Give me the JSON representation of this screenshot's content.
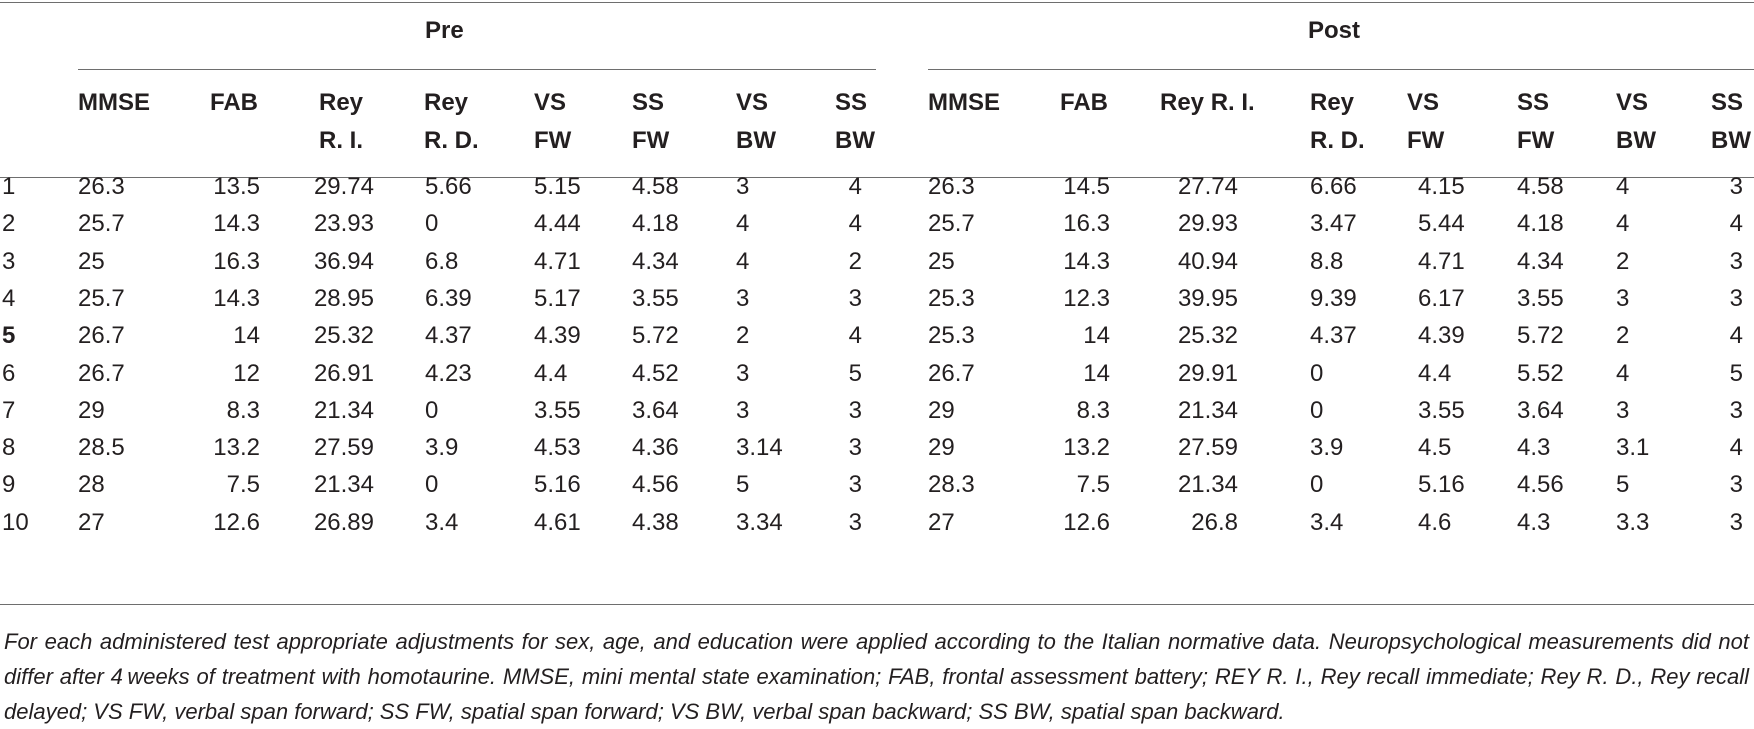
{
  "groups": {
    "pre": "Pre",
    "post": "Post"
  },
  "headers": {
    "pre": [
      [
        "MMSE"
      ],
      [
        "FAB"
      ],
      [
        "Rey",
        "R. I."
      ],
      [
        "Rey",
        "R. D."
      ],
      [
        "VS",
        "FW"
      ],
      [
        "SS",
        "FW"
      ],
      [
        "VS",
        "BW"
      ],
      [
        "SS",
        "BW"
      ]
    ],
    "post": [
      [
        "MMSE"
      ],
      [
        "FAB"
      ],
      [
        "Rey R. I."
      ],
      [
        "Rey",
        "R. D."
      ],
      [
        "VS",
        "FW"
      ],
      [
        "SS",
        "FW"
      ],
      [
        "VS",
        "BW"
      ],
      [
        "SS",
        "BW"
      ]
    ]
  },
  "rows": [
    {
      "id": "1",
      "bold": false,
      "pre": [
        "26.3",
        "13.5",
        "29.74",
        "5.66",
        "5.15",
        "4.58",
        "3",
        "4"
      ],
      "post": [
        "26.3",
        "14.5",
        "27.74",
        "6.66",
        "4.15",
        "4.58",
        "4",
        "3"
      ]
    },
    {
      "id": "2",
      "bold": false,
      "pre": [
        "25.7",
        "14.3",
        "23.93",
        "0",
        "4.44",
        "4.18",
        "4",
        "4"
      ],
      "post": [
        "25.7",
        "16.3",
        "29.93",
        "3.47",
        "5.44",
        "4.18",
        "4",
        "4"
      ]
    },
    {
      "id": "3",
      "bold": false,
      "pre": [
        "25",
        "16.3",
        "36.94",
        "6.8",
        "4.71",
        "4.34",
        "4",
        "2"
      ],
      "post": [
        "25",
        "14.3",
        "40.94",
        "8.8",
        "4.71",
        "4.34",
        "2",
        "3"
      ]
    },
    {
      "id": "4",
      "bold": false,
      "pre": [
        "25.7",
        "14.3",
        "28.95",
        "6.39",
        "5.17",
        "3.55",
        "3",
        "3"
      ],
      "post": [
        "25.3",
        "12.3",
        "39.95",
        "9.39",
        "6.17",
        "3.55",
        "3",
        "3"
      ]
    },
    {
      "id": "5",
      "bold": true,
      "pre": [
        "26.7",
        "14",
        "25.32",
        "4.37",
        "4.39",
        "5.72",
        "2",
        "4"
      ],
      "post": [
        "25.3",
        "14",
        "25.32",
        "4.37",
        "4.39",
        "5.72",
        "2",
        "4"
      ]
    },
    {
      "id": "6",
      "bold": false,
      "pre": [
        "26.7",
        "12",
        "26.91",
        "4.23",
        "4.4",
        "4.52",
        "3",
        "5"
      ],
      "post": [
        "26.7",
        "14",
        "29.91",
        "0",
        "4.4",
        "5.52",
        "4",
        "5"
      ]
    },
    {
      "id": "7",
      "bold": false,
      "pre": [
        "29",
        "8.3",
        "21.34",
        "0",
        "3.55",
        "3.64",
        "3",
        "3"
      ],
      "post": [
        "29",
        "8.3",
        "21.34",
        "0",
        "3.55",
        "3.64",
        "3",
        "3"
      ]
    },
    {
      "id": "8",
      "bold": false,
      "pre": [
        "28.5",
        "13.2",
        "27.59",
        "3.9",
        "4.53",
        "4.36",
        "3.14",
        "3"
      ],
      "post": [
        "29",
        "13.2",
        "27.59",
        "3.9",
        "4.5",
        "4.3",
        "3.1",
        "4"
      ]
    },
    {
      "id": "9",
      "bold": false,
      "pre": [
        "28",
        "7.5",
        "21.34",
        "0",
        "5.16",
        "4.56",
        "5",
        "3"
      ],
      "post": [
        "28.3",
        "7.5",
        "21.34",
        "0",
        "5.16",
        "4.56",
        "5",
        "3"
      ]
    },
    {
      "id": "10",
      "bold": false,
      "pre": [
        "27",
        "12.6",
        "26.89",
        "3.4",
        "4.61",
        "4.38",
        "3.34",
        "3"
      ],
      "post": [
        "27",
        "12.6",
        "26.8",
        "3.4",
        "4.6",
        "4.3",
        "3.3",
        "3"
      ]
    }
  ],
  "footnote": "For each administered test appropriate adjustments for sex, age, and education were applied according to the Italian normative data. Neuropsychological measurements did not differ after 4 weeks of treatment with homotaurine. MMSE, mini mental state examination; FAB, frontal assessment battery; REY R. I., Rey recall immediate; Rey R. D., Rey recall delayed; VS FW, verbal span forward; SS FW, spatial span forward; VS BW, verbal span backward; SS BW, spatial span backward."
}
